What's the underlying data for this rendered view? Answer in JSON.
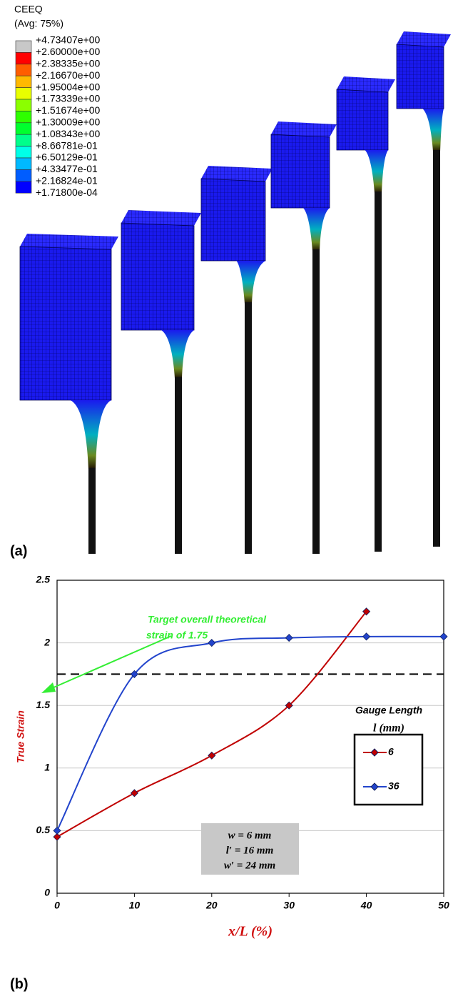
{
  "panel_a": {
    "label": "(a)",
    "contour_title": "CEEQ",
    "contour_subtitle": "(Avg: 75%)",
    "contour_levels": [
      {
        "label": "+4.73407e+00",
        "color": "#c8c8c8"
      },
      {
        "label": "+2.60000e+00",
        "color": "#ff0000"
      },
      {
        "label": "+2.38335e+00",
        "color": "#ff5d00"
      },
      {
        "label": "+2.16670e+00",
        "color": "#ffb900"
      },
      {
        "label": "+1.95004e+00",
        "color": "#e8ff00"
      },
      {
        "label": "+1.73339e+00",
        "color": "#8bff00"
      },
      {
        "label": "+1.51674e+00",
        "color": "#2eff00"
      },
      {
        "label": "+1.30009e+00",
        "color": "#00ff2e"
      },
      {
        "label": "+1.08343e+00",
        "color": "#00ff8b"
      },
      {
        "label": "+8.66781e-01",
        "color": "#00ffe8"
      },
      {
        "label": "+6.50129e-01",
        "color": "#00b9ff"
      },
      {
        "label": "+4.33477e-01",
        "color": "#005dff"
      },
      {
        "label": "+2.16824e-01",
        "color": "#0000ff"
      },
      {
        "label": "+1.71800e-04",
        "color": null
      }
    ]
  },
  "chart_data": {
    "type": "line",
    "panel_label": "(b)",
    "x_label": "x/L (%)",
    "y_label": "True Strain",
    "x": [
      0,
      10,
      20,
      30,
      40,
      50
    ],
    "series": [
      {
        "name": "6",
        "color": "#c00000",
        "values": [
          0.45,
          0.8,
          1.1,
          1.5,
          2.25,
          null
        ]
      },
      {
        "name": "36",
        "color": "#2244cc",
        "values": [
          0.5,
          1.75,
          2.0,
          2.04,
          2.05,
          2.05
        ]
      }
    ],
    "xlim": [
      0,
      50
    ],
    "ylim": [
      0,
      2.5
    ],
    "xticks": [
      0,
      10,
      20,
      30,
      40,
      50
    ],
    "yticks": [
      0,
      0.5,
      1,
      1.5,
      2,
      2.5
    ],
    "grid": true,
    "reference_line": 1.75,
    "annotation": [
      "Target overall theoretical",
      "strain of 1.75"
    ],
    "legend_title": [
      "Gauge Length",
      "l (mm)"
    ],
    "legend": "right",
    "parameters": [
      "w = 6 mm",
      "l′ = 16 mm",
      "w′ = 24 mm"
    ]
  }
}
